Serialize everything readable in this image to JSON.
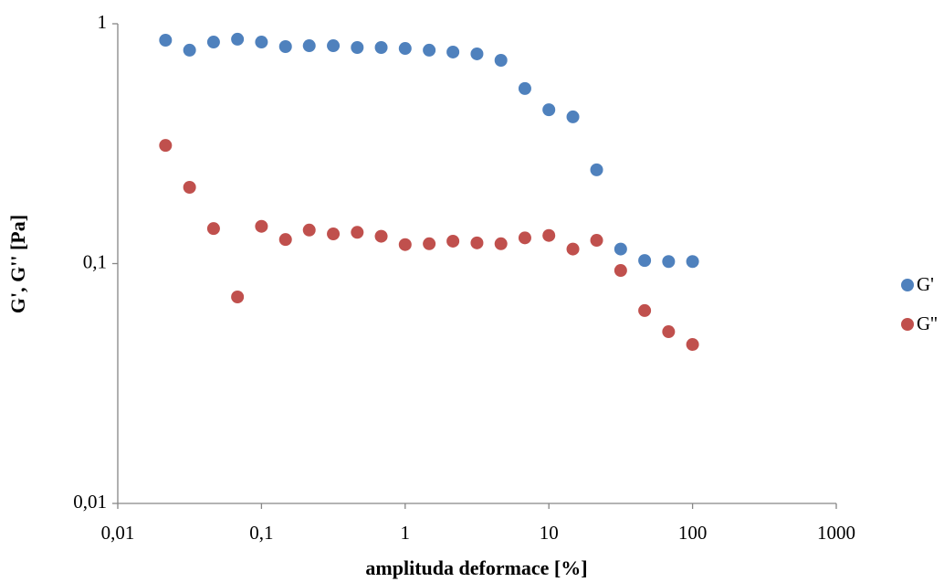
{
  "chart_data": {
    "type": "scatter",
    "x_label": "amplituda deformace [%]",
    "y_label": "G', G'' [Pa]",
    "x": [
      0.0215,
      0.0316,
      0.0464,
      0.0681,
      0.1,
      0.147,
      0.215,
      0.316,
      0.464,
      0.681,
      1,
      1.47,
      2.15,
      3.16,
      4.64,
      6.81,
      10,
      14.7,
      21.5,
      31.6,
      46.4,
      68.1,
      100
    ],
    "series": [
      {
        "name": "G'",
        "color": "#4f81bd",
        "values": [
          0.854,
          0.776,
          0.839,
          0.862,
          0.839,
          0.803,
          0.81,
          0.81,
          0.796,
          0.796,
          0.789,
          0.776,
          0.762,
          0.749,
          0.704,
          0.537,
          0.438,
          0.409,
          0.246,
          0.115,
          0.103,
          0.102,
          0.102
        ]
      },
      {
        "name": "G''",
        "color": "#c0504d",
        "values": [
          0.311,
          0.208,
          0.14,
          0.0726,
          0.143,
          0.126,
          0.138,
          0.133,
          0.135,
          0.13,
          0.12,
          0.121,
          0.124,
          0.122,
          0.121,
          0.128,
          0.131,
          0.115,
          0.125,
          0.0936,
          0.0637,
          0.052,
          0.046
        ]
      }
    ],
    "xlog": true,
    "ylog": true,
    "xlim": [
      0.01,
      1000
    ],
    "xticks": [
      {
        "value": 0.01,
        "label": "0,01"
      },
      {
        "value": 0.1,
        "label": "0,1"
      },
      1,
      10,
      100,
      1000
    ],
    "ylim": [
      0.01,
      1
    ],
    "yticks": [
      {
        "value": 0.01,
        "label": "0,01"
      },
      {
        "value": 0.1,
        "label": "0,1"
      },
      1
    ],
    "grid": false,
    "legend": "right"
  }
}
